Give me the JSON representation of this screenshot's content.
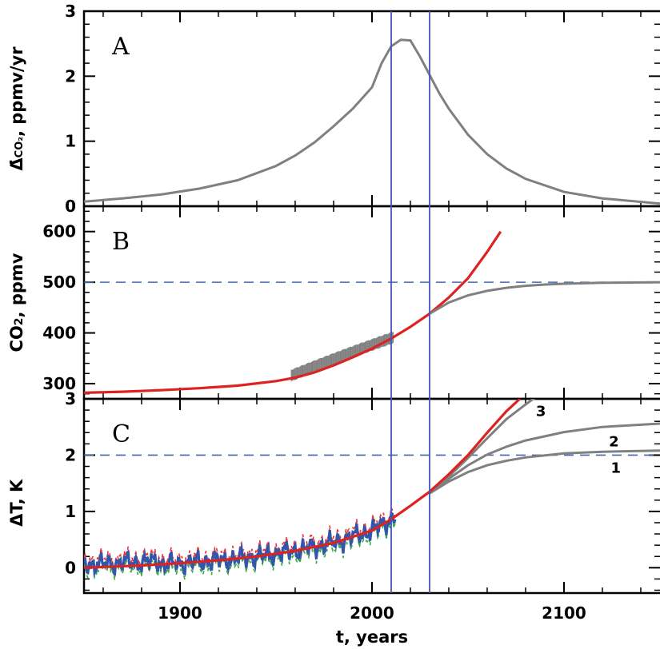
{
  "chart_data": [
    {
      "panel": "A",
      "type": "line",
      "ylabel": "Δ̇CO₂, ppmv/yr",
      "ylim": [
        0,
        3
      ],
      "xlim": [
        1850,
        2150
      ],
      "yticks": [
        "0",
        "1",
        "2",
        "3"
      ],
      "series": [
        {
          "color": "#808080",
          "x": [
            1850,
            1870,
            1890,
            1910,
            1930,
            1950,
            1960,
            1970,
            1980,
            1990,
            2000,
            2005,
            2010,
            2015,
            2020,
            2025,
            2030,
            2035,
            2040,
            2050,
            2060,
            2070,
            2080,
            2100,
            2120,
            2150
          ],
          "y": [
            0.07,
            0.12,
            0.18,
            0.27,
            0.4,
            0.62,
            0.78,
            0.98,
            1.23,
            1.5,
            1.83,
            2.2,
            2.46,
            2.56,
            2.55,
            2.3,
            2.02,
            1.74,
            1.5,
            1.1,
            0.8,
            0.58,
            0.42,
            0.22,
            0.12,
            0.04
          ]
        }
      ]
    },
    {
      "panel": "B",
      "type": "line",
      "ylabel": "CO₂, ppmv",
      "ylim": [
        270,
        650
      ],
      "xlim": [
        1850,
        2150
      ],
      "yticks": [
        "300",
        "400",
        "500",
        "600"
      ],
      "reference_y": 500,
      "series": [
        {
          "color": "#dd2222",
          "x": [
            1850,
            1870,
            1890,
            1910,
            1930,
            1950,
            1960,
            1970,
            1980,
            1990,
            2000,
            2010,
            2020,
            2030,
            2040,
            2050,
            2060,
            2067
          ],
          "y": [
            282,
            284,
            287,
            291,
            296,
            305,
            312,
            322,
            336,
            352,
            369,
            389,
            412,
            438,
            470,
            508,
            560,
            600
          ]
        },
        {
          "color": "#808080",
          "x": [
            2030,
            2040,
            2050,
            2060,
            2070,
            2080,
            2090,
            2100,
            2120,
            2150
          ],
          "y": [
            438,
            460,
            474,
            483,
            489,
            493,
            495.5,
            497,
            499,
            500
          ]
        }
      ],
      "observed": {
        "color": "#808080",
        "x_start": 1958,
        "x_end": 2011,
        "y_start": 316,
        "y_end": 391,
        "seasonal_amplitude": 12
      }
    },
    {
      "panel": "C",
      "type": "line",
      "ylabel": "ΔT, K",
      "xlabel": "t, years",
      "ylim": [
        -0.45,
        3
      ],
      "xlim": [
        1850,
        2150
      ],
      "yticks": [
        "0",
        "1",
        "2",
        "3"
      ],
      "xticks": [
        "1900",
        "2000",
        "2100"
      ],
      "reference_y": 2,
      "series": [
        {
          "color": "#dd2222",
          "x": [
            1850,
            1880,
            1900,
            1920,
            1940,
            1960,
            1980,
            2000,
            2010,
            2020,
            2030,
            2040,
            2050,
            2060,
            2070,
            2077
          ],
          "y": [
            0.0,
            0.04,
            0.08,
            0.13,
            0.2,
            0.3,
            0.44,
            0.66,
            0.86,
            1.1,
            1.35,
            1.66,
            2.0,
            2.4,
            2.78,
            3.0
          ]
        },
        {
          "name": "3",
          "color": "#808080",
          "x": [
            2030,
            2040,
            2050,
            2060,
            2070,
            2080,
            2090,
            2095
          ],
          "y": [
            1.32,
            1.62,
            1.95,
            2.3,
            2.64,
            2.9,
            3.15,
            3.3
          ]
        },
        {
          "name": "2",
          "color": "#808080",
          "x": [
            2030,
            2040,
            2050,
            2060,
            2070,
            2080,
            2100,
            2120,
            2150
          ],
          "y": [
            1.32,
            1.58,
            1.82,
            2.01,
            2.15,
            2.26,
            2.41,
            2.5,
            2.56
          ]
        },
        {
          "name": "1",
          "color": "#808080",
          "x": [
            2030,
            2040,
            2050,
            2060,
            2070,
            2080,
            2100,
            2120,
            2150
          ],
          "y": [
            1.32,
            1.53,
            1.7,
            1.82,
            1.9,
            1.96,
            2.03,
            2.06,
            2.08
          ]
        }
      ],
      "observed": {
        "x_start": 1850,
        "x_end": 2012,
        "colors": {
          "upper": "#ee3333",
          "central": "#3355aa",
          "lower": "#33aa44"
        },
        "band_half_width": 0.08
      }
    }
  ],
  "markers": {
    "vertical_lines_x": [
      2010,
      2030
    ],
    "vline_color": "#4455bb",
    "hline_color": "#4466aa"
  },
  "panels": {
    "a": {
      "letter": "A",
      "ylabel_prefix": "Δ̇",
      "ylabel_sub": "CO₂",
      "ylabel_suffix": ", ppmv/yr"
    },
    "b": {
      "letter": "B",
      "ylabel_main": "CO",
      "ylabel_sub": "2",
      "ylabel_suffix": ", ppmv"
    },
    "c": {
      "letter": "C",
      "ylabel": "ΔT, K",
      "curve_labels": [
        "3",
        "2",
        "1"
      ]
    }
  },
  "x_axis": {
    "label": "t, years"
  }
}
